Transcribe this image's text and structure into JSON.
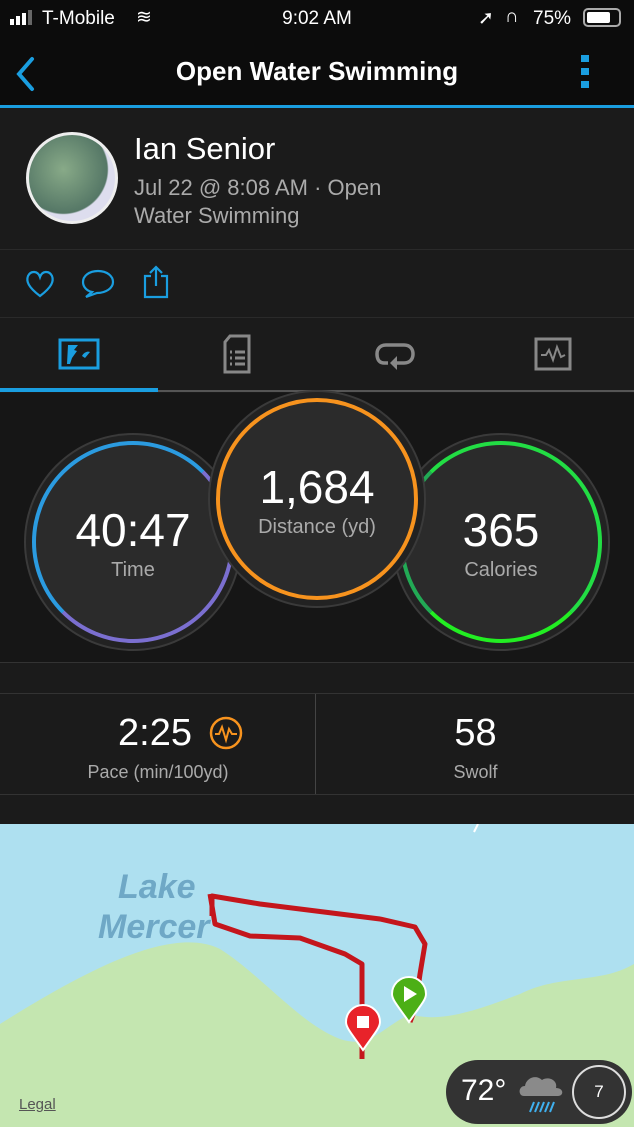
{
  "status": {
    "carrier": "T-Mobile",
    "time": "9:02 AM",
    "battery": "75%"
  },
  "nav": {
    "title": "Open Water Swimming"
  },
  "profile": {
    "name": "Ian Senior",
    "line1": "Jul 22 @ 8:08 AM · Open",
    "line2": "Water Swimming"
  },
  "tabs": [
    {
      "icon": "stats-icon",
      "active": true
    },
    {
      "icon": "details-icon"
    },
    {
      "icon": "laps-icon"
    },
    {
      "icon": "charts-icon"
    }
  ],
  "metrics": {
    "time": {
      "value": "40:47",
      "label": "Time"
    },
    "distance": {
      "value": "1,684",
      "label": "Distance (yd)"
    },
    "calories": {
      "value": "365",
      "label": "Calories"
    }
  },
  "stats": {
    "pace": {
      "value": "2:25",
      "label": "Pace (min/100yd)"
    },
    "swolf": {
      "value": "58",
      "label": "Swolf"
    }
  },
  "map": {
    "lake_label_1": "Lake",
    "lake_label_2": "Mercer",
    "legal": "Legal",
    "temperature": "72°",
    "wind_speed": "7",
    "route_color": "#c4161c",
    "water_color": "#aee0f0",
    "land_color": "#c4e6b0"
  },
  "colors": {
    "accent": "#1a9ee0",
    "distance_ring": "#f7931e",
    "calories_ring": "#22dd44"
  }
}
